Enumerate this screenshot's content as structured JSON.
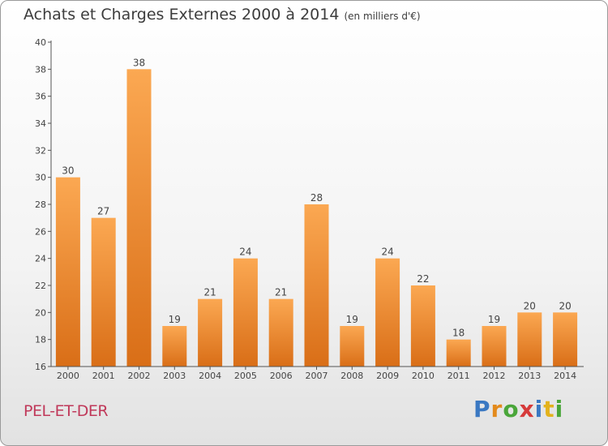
{
  "title": "Achats et Charges Externes 2000 à 2014",
  "subtitle": "(en milliers d'€)",
  "location": "PEL-ET-DER",
  "logo": {
    "letters": [
      "P",
      "r",
      "o",
      "x",
      "i",
      "t",
      "i"
    ],
    "colors": [
      "#3a78c2",
      "#e38a1c",
      "#4aa63a",
      "#d63a3a",
      "#3a78c2",
      "#e3b21c",
      "#4aa63a"
    ]
  },
  "colors": {
    "bar_top": "#fba852",
    "bar_bottom": "#d96e17",
    "axis": "#555555",
    "grid": "#cccccc"
  },
  "chart_data": {
    "type": "bar",
    "title": "Achats et Charges Externes 2000 à 2014",
    "subtitle": "(en milliers d'€)",
    "categories": [
      "2000",
      "2001",
      "2002",
      "2003",
      "2004",
      "2005",
      "2006",
      "2007",
      "2008",
      "2009",
      "2010",
      "2011",
      "2012",
      "2013",
      "2014"
    ],
    "values": [
      30,
      27,
      38,
      19,
      21,
      24,
      21,
      28,
      19,
      24,
      22,
      18,
      19,
      20,
      20
    ],
    "data_labels": [
      "30",
      "27",
      "38",
      "19",
      "21",
      "24",
      "21",
      "28",
      "19",
      "24",
      "22",
      "18",
      "19",
      "20",
      "20"
    ],
    "ylim": [
      16,
      40
    ],
    "yticks": [
      "16",
      "18",
      "20",
      "22",
      "24",
      "26",
      "28",
      "30",
      "32",
      "34",
      "36",
      "38",
      "40"
    ],
    "xlabel": "",
    "ylabel": "",
    "grid": false,
    "legend": "none"
  }
}
